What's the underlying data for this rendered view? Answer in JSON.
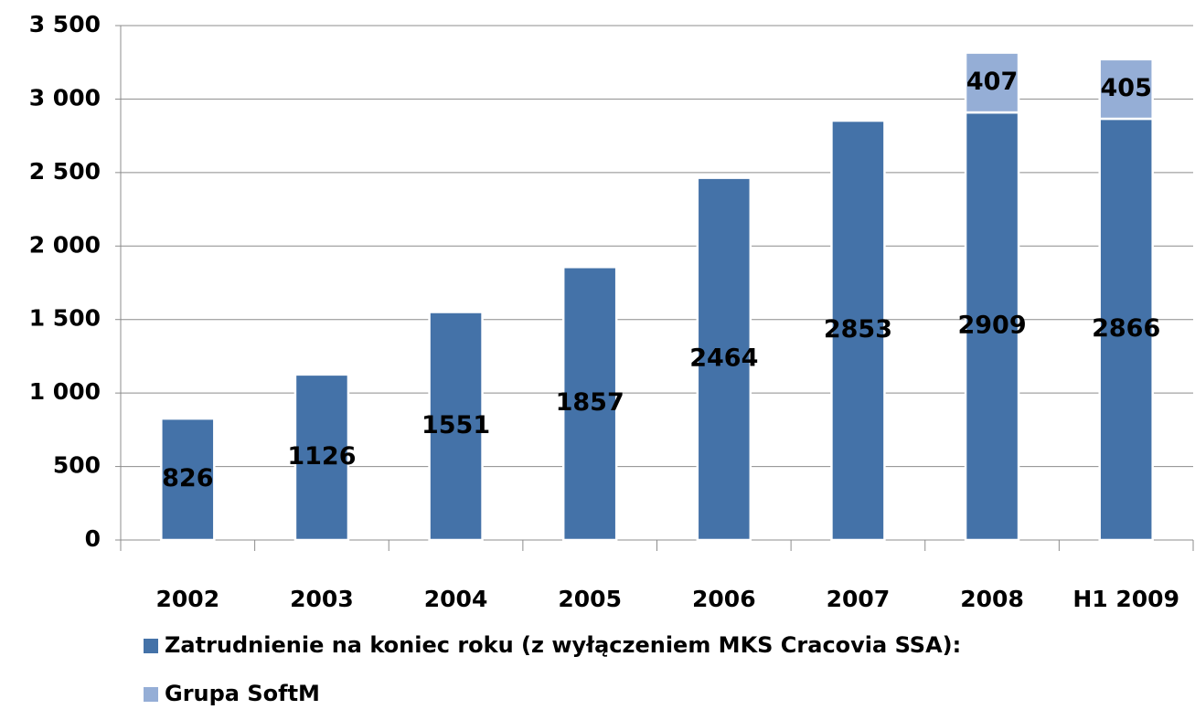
{
  "chart_data": {
    "type": "stacked_bar",
    "categories": [
      "2002",
      "2003",
      "2004",
      "2005",
      "2006",
      "2007",
      "2008",
      "H1 2009"
    ],
    "series": [
      {
        "name": "Zatrudnienie na koniec roku (z wyłączeniem MKS Cracovia SSA):",
        "color": "#4472a8",
        "values": [
          826,
          1126,
          1551,
          1857,
          2464,
          2853,
          2909,
          2866
        ]
      },
      {
        "name": "Grupa SoftM",
        "color": "#95aed6",
        "values": [
          null,
          null,
          null,
          null,
          null,
          null,
          407,
          405
        ]
      }
    ],
    "ylim": [
      0,
      3500
    ],
    "yticks": [
      0,
      500,
      {
        "value": 1000,
        "label": "1 000"
      },
      {
        "value": 1500,
        "label": "1 500"
      },
      {
        "value": 2000,
        "label": "2 000"
      },
      {
        "value": 2500,
        "label": "2 500"
      },
      {
        "value": 3000,
        "label": "3 000"
      },
      {
        "value": 3500,
        "label": "3 500"
      }
    ],
    "grid": true,
    "legend": "bottom"
  }
}
